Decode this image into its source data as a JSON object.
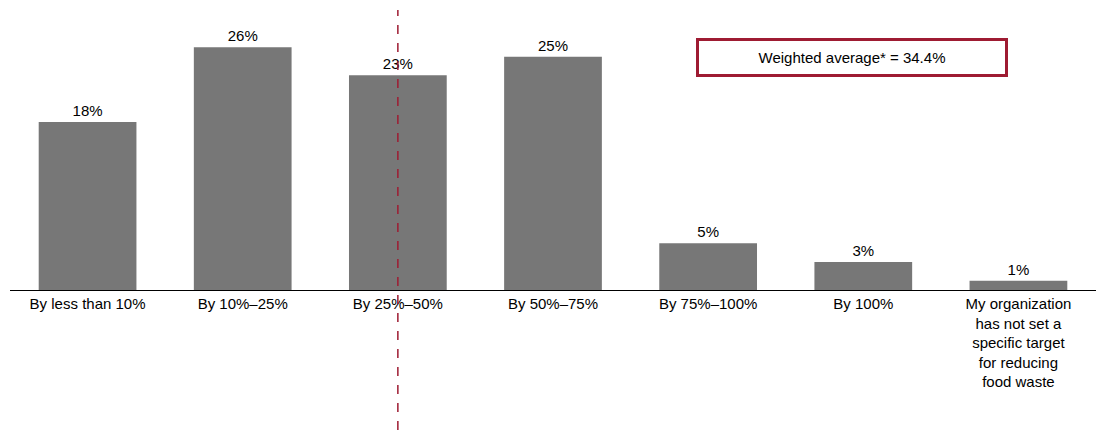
{
  "chart_data": {
    "type": "bar",
    "categories": [
      "By less than 10%",
      "By 10%–25%",
      "By 25%–50%",
      "By 50%–75%",
      "By 75%–100%",
      "By 100%",
      "My organization has not set a specific target for reducing food waste"
    ],
    "values": [
      18,
      26,
      23,
      25,
      5,
      3,
      1
    ],
    "value_labels": [
      "18%",
      "26%",
      "23%",
      "25%",
      "5%",
      "3%",
      "1%"
    ],
    "color": "#777777",
    "ylim": [
      0,
      30
    ],
    "grid": false,
    "data_labels": true,
    "tick_labels": "x",
    "annotations": [
      {
        "text": "Weighted average* = 34.4%"
      }
    ],
    "reference_line": {
      "category": "By 25%–50%"
    }
  }
}
